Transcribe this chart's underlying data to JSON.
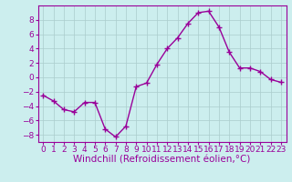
{
  "x": [
    0,
    1,
    2,
    3,
    4,
    5,
    6,
    7,
    8,
    9,
    10,
    11,
    12,
    13,
    14,
    15,
    16,
    17,
    18,
    19,
    20,
    21,
    22,
    23
  ],
  "y": [
    -2.5,
    -3.3,
    -4.5,
    -4.8,
    -3.5,
    -3.5,
    -7.2,
    -8.3,
    -6.8,
    -1.3,
    -0.8,
    1.8,
    4.0,
    5.5,
    7.5,
    9.0,
    9.2,
    7.0,
    3.5,
    1.3,
    1.3,
    0.8,
    -0.3,
    -0.7
  ],
  "line_color": "#990099",
  "marker": "+",
  "marker_size": 4,
  "bg_color": "#cceeee",
  "grid_color": "#aacccc",
  "xlabel": "Windchill (Refroidissement éolien,°C)",
  "xlabel_fontsize": 7.5,
  "ylim": [
    -9,
    10
  ],
  "xlim": [
    -0.5,
    23.5
  ],
  "yticks": [
    -8,
    -6,
    -4,
    -2,
    0,
    2,
    4,
    6,
    8
  ],
  "xticks": [
    0,
    1,
    2,
    3,
    4,
    5,
    6,
    7,
    8,
    9,
    10,
    11,
    12,
    13,
    14,
    15,
    16,
    17,
    18,
    19,
    20,
    21,
    22,
    23
  ],
  "tick_fontsize": 6.5,
  "tick_color": "#990099",
  "label_color": "#990099",
  "spine_color": "#990099"
}
